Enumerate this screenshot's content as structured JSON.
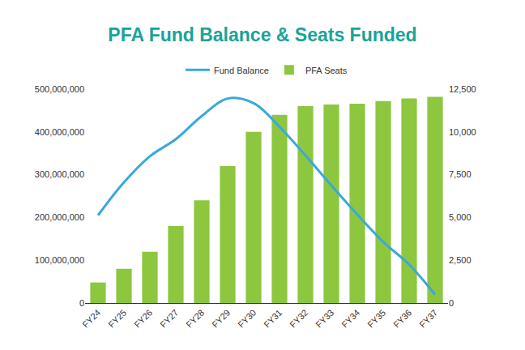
{
  "chart_data": {
    "type": "bar",
    "title": "PFA Fund Balance & Seats Funded",
    "categories": [
      "FY24",
      "FY25",
      "FY26",
      "FY27",
      "FY28",
      "FY29",
      "FY30",
      "FY31",
      "FY32",
      "FY33",
      "FY34",
      "FY35",
      "FY36",
      "FY37"
    ],
    "series": [
      {
        "name": "Fund Balance",
        "type": "line",
        "color": "#3aa8dc",
        "line_style": "solid",
        "values": [
          205000000,
          282000000,
          343000000,
          383000000,
          437000000,
          478000000,
          467000000,
          412000000,
          345000000,
          275000000,
          207000000,
          143000000,
          90000000,
          20000000
        ]
      },
      {
        "name": "PFA Seats",
        "type": "bar",
        "color": "#8dc63f",
        "axis": "y2",
        "values": [
          1200,
          2000,
          3000,
          4500,
          6000,
          8000,
          10000,
          11000,
          11500,
          11600,
          11650,
          11800,
          11950,
          12050
        ]
      }
    ],
    "ylim": [
      0,
      500000000
    ],
    "yticks": [
      0,
      {
        "value": 100000000,
        "label": "100,000,000"
      },
      {
        "value": 200000000,
        "label": "200,000,000"
      },
      {
        "value": 300000000,
        "label": "300,000,000"
      },
      {
        "value": 400000000,
        "label": "400,000,000"
      },
      {
        "value": 500000000,
        "label": "500,000,000"
      }
    ],
    "y2lim": [
      0,
      12500
    ],
    "y2ticks": [
      0,
      {
        "value": 2500,
        "label": "2,500"
      },
      {
        "value": 5000,
        "label": "5,000"
      },
      {
        "value": 7500,
        "label": "7,500"
      },
      {
        "value": 10000,
        "label": "10,000"
      },
      {
        "value": 12500,
        "label": "12,500"
      }
    ],
    "grid": false,
    "legend": "top"
  }
}
